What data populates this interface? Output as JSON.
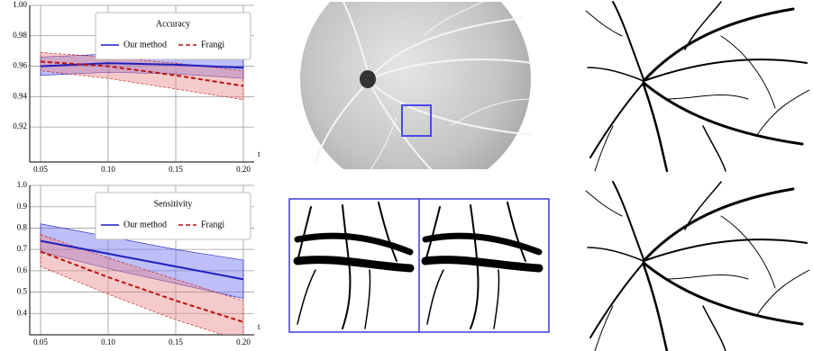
{
  "chart_data": [
    {
      "type": "line",
      "title": "Accuracy",
      "xlabel": "t",
      "x": [
        0.05,
        0.1,
        0.15,
        0.2
      ],
      "series": [
        {
          "name": "Our method",
          "color": "#1f1fbf",
          "dash": false,
          "band_color": "#6f6ff0",
          "values": [
            0.96,
            0.962,
            0.961,
            0.959
          ],
          "band_upper": [
            0.966,
            0.968,
            0.967,
            0.966
          ],
          "band_lower": [
            0.954,
            0.956,
            0.955,
            0.952
          ]
        },
        {
          "name": "Frangi",
          "color": "#b81414",
          "dash": true,
          "band_color": "#e88a8a",
          "values": [
            0.963,
            0.96,
            0.954,
            0.947
          ],
          "band_upper": [
            0.969,
            0.966,
            0.962,
            0.957
          ],
          "band_lower": [
            0.957,
            0.952,
            0.945,
            0.938
          ]
        }
      ],
      "xlim": [
        0.042,
        0.208
      ],
      "ylim": [
        0.897,
        1.0
      ],
      "xticks": [
        0.05,
        {
          "value": 0.1,
          "label": "0.10"
        },
        0.15,
        {
          "value": 0.2,
          "label": "0.20"
        }
      ],
      "yticks": [
        0.92,
        0.94,
        0.96,
        0.98,
        {
          "value": 1.0,
          "label": "1.00"
        }
      ],
      "grid": true,
      "legend": "upper right"
    },
    {
      "type": "line",
      "title": "Sensitivity",
      "xlabel": "t",
      "x": [
        0.05,
        0.1,
        0.15,
        0.2
      ],
      "series": [
        {
          "name": "Our method",
          "color": "#1f1fbf",
          "dash": false,
          "band_color": "#6f6ff0",
          "values": [
            0.74,
            0.68,
            0.62,
            0.56
          ],
          "band_upper": [
            0.82,
            0.76,
            0.7,
            0.65
          ],
          "band_lower": [
            0.69,
            0.61,
            0.54,
            0.47
          ]
        },
        {
          "name": "Frangi",
          "color": "#b81414",
          "dash": true,
          "band_color": "#e88a8a",
          "values": [
            0.69,
            0.57,
            0.46,
            0.36
          ],
          "band_upper": [
            0.77,
            0.66,
            0.56,
            0.46
          ],
          "band_lower": [
            0.62,
            0.49,
            0.37,
            0.27
          ]
        }
      ],
      "xlim": [
        0.042,
        0.208
      ],
      "ylim": [
        0.3,
        1.0
      ],
      "xticks": [
        0.05,
        {
          "value": 0.1,
          "label": "0.10"
        },
        0.15,
        {
          "value": 0.2,
          "label": "0.20"
        }
      ],
      "yticks": [
        0.4,
        0.5,
        0.6,
        0.7,
        0.8,
        0.9,
        {
          "value": 1.0,
          "label": "1.0"
        }
      ],
      "grid": true,
      "legend": "upper right"
    }
  ]
}
